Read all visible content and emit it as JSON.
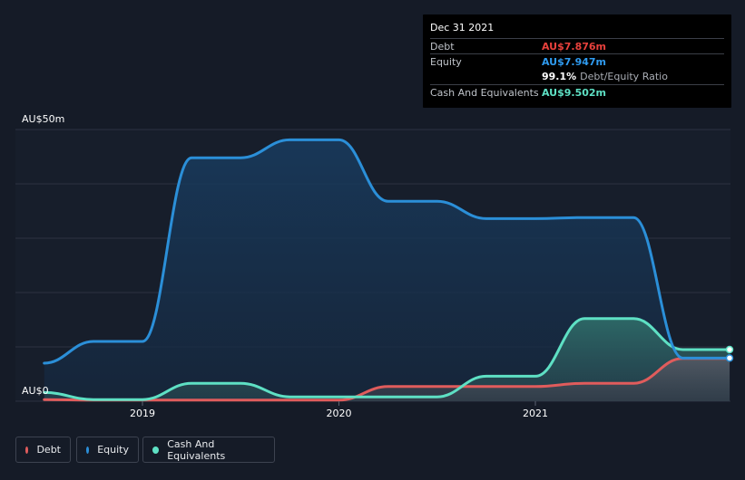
{
  "chart_data": {
    "type": "area",
    "currency": "AU$",
    "y_top_label": "AU$50m",
    "y_bottom_label": "AU$0",
    "ylim": [
      0,
      50
    ],
    "x_ticks": [
      {
        "label": "2019",
        "t": 2019.0
      },
      {
        "label": "2020",
        "t": 2020.0
      },
      {
        "label": "2021",
        "t": 2021.0
      }
    ],
    "series": [
      {
        "name": "Debt",
        "color": "#e05c5c",
        "x": [
          2018.5,
          2018.75,
          2019.0,
          2019.25,
          2019.5,
          2019.75,
          2020.0,
          2020.25,
          2020.5,
          2020.75,
          2021.0,
          2021.25,
          2021.5,
          2021.75,
          2022.0
        ],
        "values": [
          0.3,
          0.2,
          0.2,
          0.2,
          0.2,
          0.2,
          0.2,
          2.7,
          2.7,
          2.7,
          2.7,
          3.3,
          3.3,
          7.876,
          7.876
        ]
      },
      {
        "name": "Equity",
        "color": "#2b8fd8",
        "x": [
          2018.5,
          2018.75,
          2019.0,
          2019.25,
          2019.5,
          2019.75,
          2020.0,
          2020.25,
          2020.5,
          2020.75,
          2021.0,
          2021.25,
          2021.5,
          2021.75,
          2022.0
        ],
        "values": [
          7.0,
          11.0,
          11.0,
          44.8,
          44.8,
          48.1,
          48.1,
          36.8,
          36.8,
          33.6,
          33.6,
          33.8,
          33.8,
          7.947,
          7.947
        ]
      },
      {
        "name": "Cash And Equivalents",
        "color": "#5ee0c4",
        "x": [
          2018.5,
          2018.75,
          2019.0,
          2019.25,
          2019.5,
          2019.75,
          2020.0,
          2020.25,
          2020.5,
          2020.75,
          2021.0,
          2021.25,
          2021.5,
          2021.75,
          2022.0
        ],
        "values": [
          1.6,
          0.3,
          0.3,
          3.3,
          3.3,
          0.8,
          0.8,
          0.8,
          0.8,
          4.6,
          4.6,
          15.2,
          15.2,
          9.502,
          9.502
        ]
      }
    ]
  },
  "tooltip": {
    "date": "Dec 31 2021",
    "rows": [
      {
        "label": "Debt",
        "value": "AU$7.876m",
        "color": "#e8413c"
      },
      {
        "label": "Equity",
        "value": "AU$7.947m",
        "color": "#2f9bf0"
      }
    ],
    "ratio_value": "99.1%",
    "ratio_label": "Debt/Equity Ratio",
    "cash": {
      "label": "Cash And Equivalents",
      "value": "AU$9.502m",
      "color": "#5ee0c4"
    }
  },
  "legend": [
    {
      "label": "Debt",
      "color": "#e05c5c"
    },
    {
      "label": "Equity",
      "color": "#2b8fd8"
    },
    {
      "label": "Cash And Equivalents",
      "color": "#5ee0c4"
    }
  ]
}
